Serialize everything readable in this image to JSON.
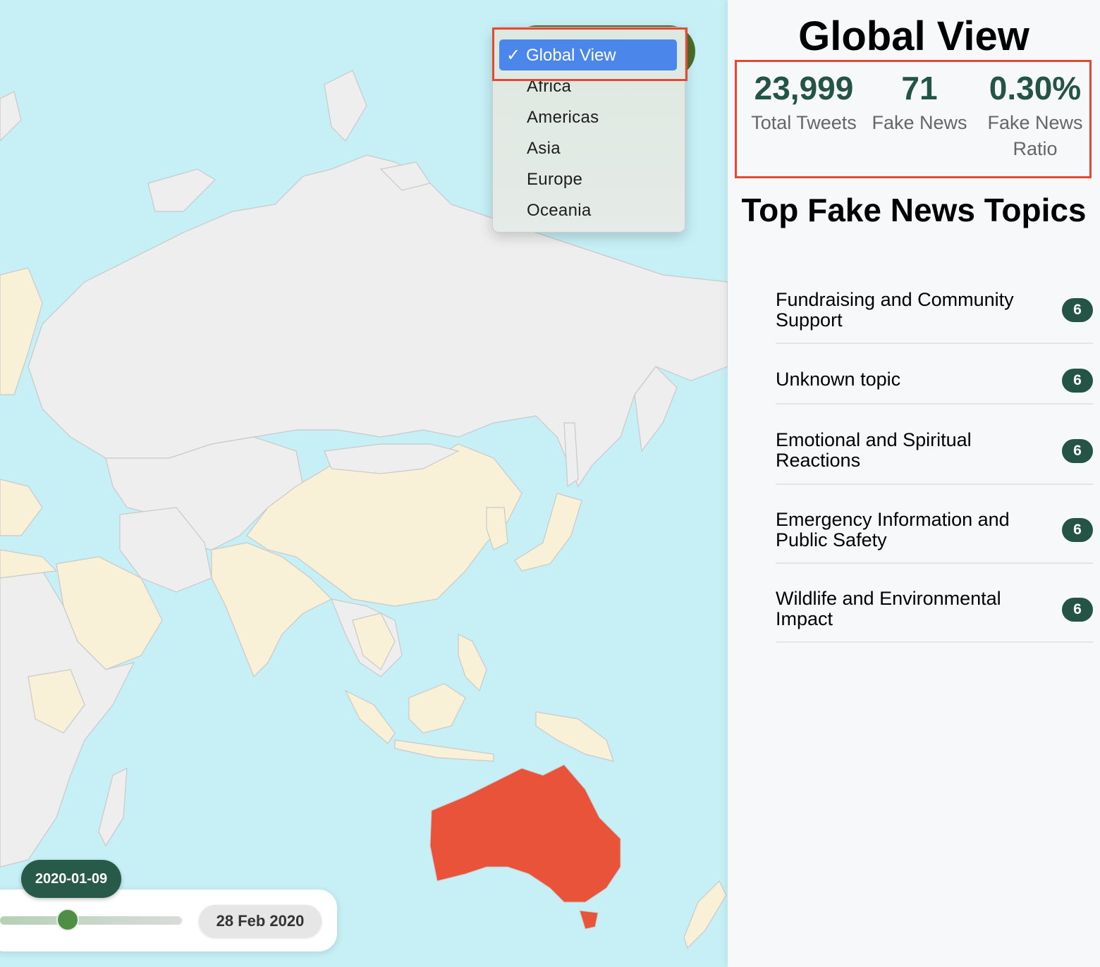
{
  "region_selector": {
    "selected": "Global View",
    "options": [
      "Global View",
      "Africa",
      "Americas",
      "Asia",
      "Europe",
      "Oceania"
    ]
  },
  "timeline": {
    "current_date": "2020-01-09",
    "end_date": "28 Feb 2020"
  },
  "map": {
    "highlighted_region": "Australia",
    "colors": {
      "ocean": "#c6eff6",
      "land": "#eeeeee",
      "land_alt": "#f8f1d8",
      "highlight": "#e8533a"
    }
  },
  "sidebar": {
    "title": "Global View",
    "stats": [
      {
        "value": "23,999",
        "label": "Total Tweets"
      },
      {
        "value": "71",
        "label": "Fake News"
      },
      {
        "value": "0.30%",
        "label": "Fake News Ratio"
      }
    ],
    "topics_heading": "Top Fake News Topics",
    "topics": [
      {
        "label": "Fundraising and Community Support",
        "count": "6"
      },
      {
        "label": "Unknown topic",
        "count": "6"
      },
      {
        "label": "Emotional and Spiritual Reactions",
        "count": "6"
      },
      {
        "label": "Emergency Information and Public Safety",
        "count": "6"
      },
      {
        "label": "Wildlife and Environmental Impact",
        "count": "6"
      }
    ]
  },
  "colors": {
    "accent_dark_green": "#245446",
    "selection_blue": "#4b86ea",
    "annotation_red": "#e24a33"
  }
}
